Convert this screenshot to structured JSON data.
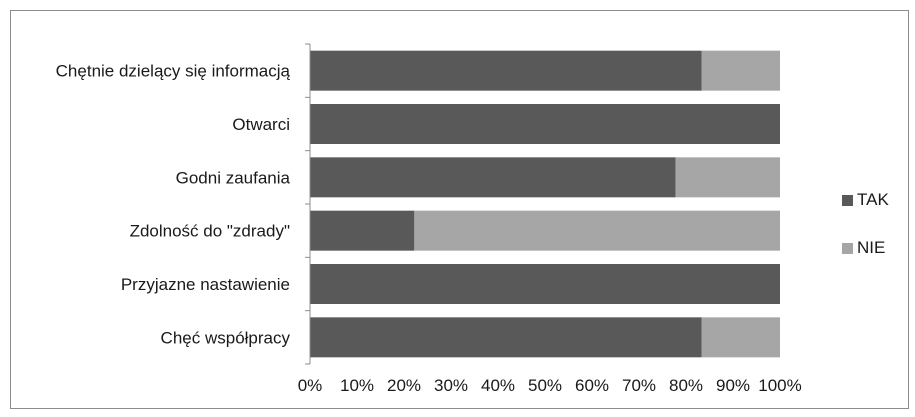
{
  "chart_data": {
    "type": "bar",
    "orientation": "horizontal",
    "stacked": "percent",
    "categories": [
      "Chętnie dzielący się informacją",
      "Otwarci",
      "Godni zaufania",
      "Zdolność do \"zdrady\"",
      "Przyjazne nastawienie",
      "Chęć współpracy"
    ],
    "series": [
      {
        "name": "TAK",
        "values": [
          83.3,
          100,
          77.8,
          22.2,
          100,
          83.3
        ],
        "color": "#595959"
      },
      {
        "name": "NIE",
        "values": [
          16.7,
          0,
          22.2,
          77.8,
          0,
          16.7
        ],
        "color": "#a6a6a6"
      }
    ],
    "x_ticks": [
      "0%",
      "10%",
      "20%",
      "30%",
      "40%",
      "50%",
      "60%",
      "70%",
      "80%",
      "90%",
      "100%"
    ],
    "xlim": [
      0,
      100
    ],
    "grid": false,
    "legend": "right",
    "title": "",
    "xlabel": "",
    "ylabel": ""
  }
}
